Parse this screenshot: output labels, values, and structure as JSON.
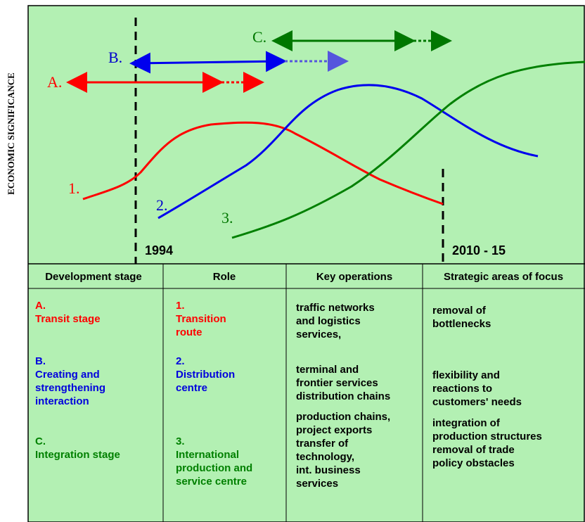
{
  "axis_label": "ECONOMIC SIGNIFICANCE",
  "markers": [
    "1994",
    "2010 - 15"
  ],
  "stage_labels": [
    "A.",
    "B.",
    "C."
  ],
  "curve_labels": [
    "1.",
    "2.",
    "3."
  ],
  "table": {
    "header": [
      "Development stage",
      "Role",
      "Key operations",
      "Strategic areas of focus"
    ],
    "rows": [
      [
        [
          "A.",
          "Transit stage"
        ],
        [
          "1.",
          "Transition",
          "route"
        ],
        [
          "traffic networks",
          "and logistics",
          "services,"
        ],
        [
          "removal of",
          "bottlenecks"
        ]
      ],
      [
        [
          "B.",
          "Creating and",
          "strengthening",
          "interaction"
        ],
        [
          "2.",
          "Distribution",
          "centre"
        ],
        [
          "terminal and",
          "frontier services",
          "distribution chains"
        ],
        [
          "flexibility and",
          "reactions to",
          "customers' needs"
        ]
      ],
      [
        [
          "C.",
          "Integration stage"
        ],
        [
          "3.",
          "International",
          "production and",
          "service centre"
        ],
        [
          "production chains,",
          "project exports",
          "transfer of",
          "technology,",
          "int. business",
          "services"
        ],
        [
          "integration of",
          "production structures",
          "removal of trade",
          "policy obstacles"
        ]
      ]
    ]
  }
}
